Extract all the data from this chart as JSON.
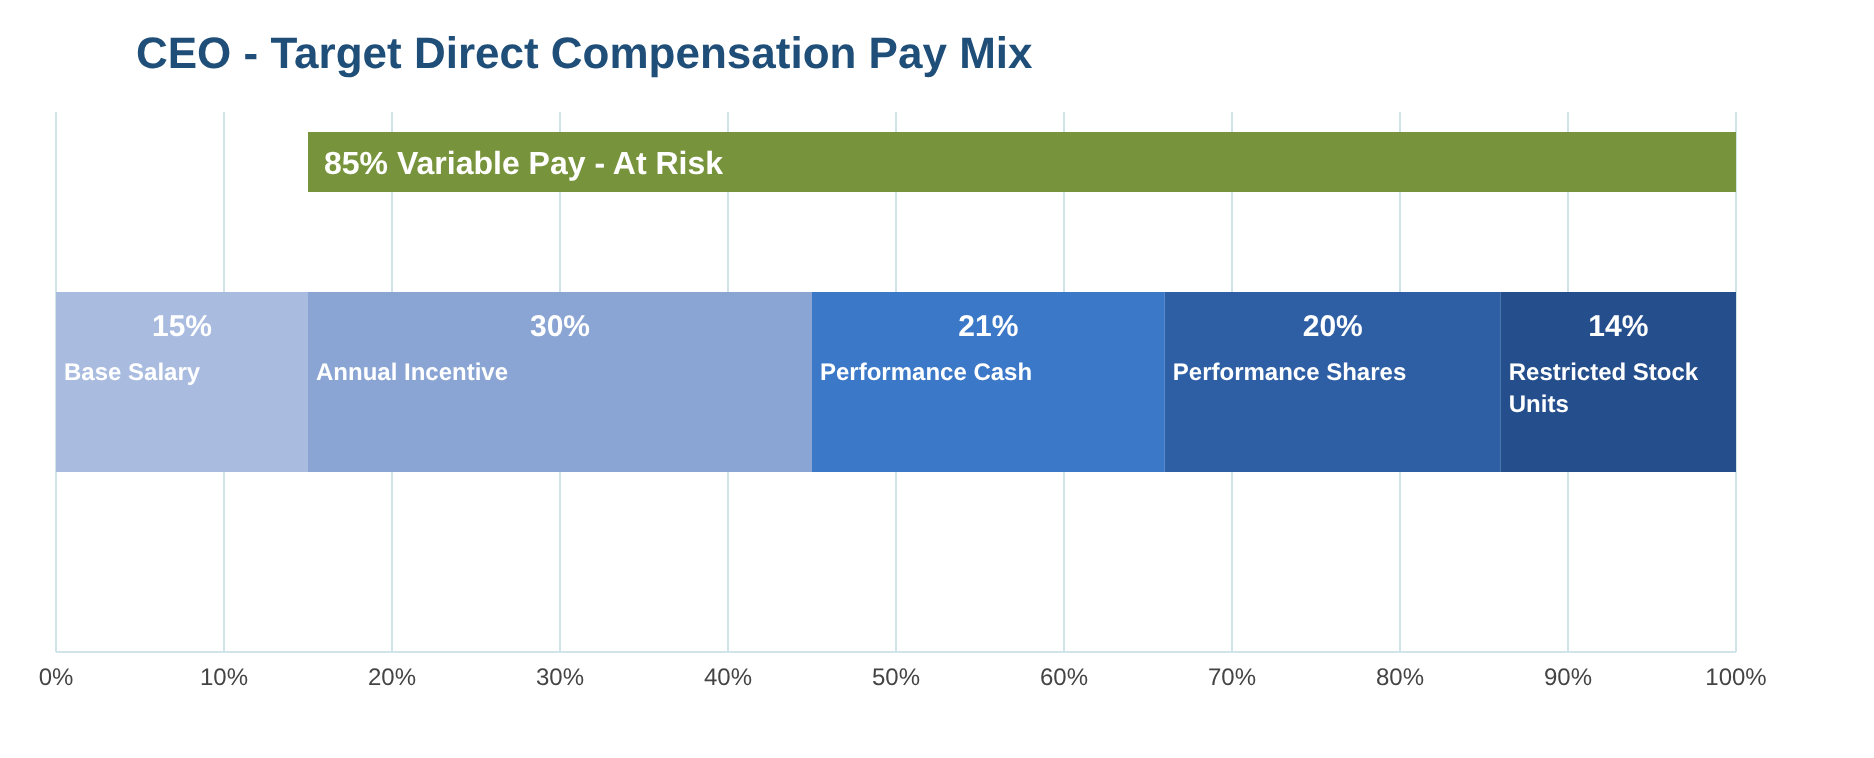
{
  "chart_data": {
    "type": "bar",
    "title": "CEO - Target Direct Compensation Pay Mix",
    "orientation": "horizontal",
    "stacked": true,
    "categories": [
      null
    ],
    "series": [
      {
        "name": "Base Salary",
        "color": "#a9bce0",
        "values": [
          15
        ],
        "value_labels": [
          "15%"
        ]
      },
      {
        "name": "Annual Incentive",
        "color": "#8aa4d3",
        "values": [
          30
        ],
        "value_labels": [
          "30%"
        ]
      },
      {
        "name": "Performance Cash",
        "color": "#3b78c8",
        "values": [
          21
        ],
        "value_labels": [
          "21%"
        ]
      },
      {
        "name": "Performance Shares",
        "color": "#2e5fa5",
        "values": [
          20
        ],
        "value_labels": [
          "20%"
        ]
      },
      {
        "name": "Restricted Stock Units",
        "color": "#244f8c",
        "values": [
          14
        ],
        "value_labels": [
          "14%"
        ]
      }
    ],
    "bands": [
      {
        "axis": "x",
        "from": 15,
        "to": 100,
        "label": "85% Variable Pay - At Risk",
        "color": "#77933c"
      }
    ],
    "xlim": [
      0,
      100
    ],
    "xticks": [
      {
        "value": 0,
        "label": "0%"
      },
      {
        "value": 10,
        "label": "10%"
      },
      {
        "value": 20,
        "label": "20%"
      },
      {
        "value": 30,
        "label": "30%"
      },
      {
        "value": 40,
        "label": "40%"
      },
      {
        "value": 50,
        "label": "50%"
      },
      {
        "value": 60,
        "label": "60%"
      },
      {
        "value": 70,
        "label": "70%"
      },
      {
        "value": 80,
        "label": "80%"
      },
      {
        "value": 90,
        "label": "90%"
      },
      {
        "value": 100,
        "label": "100%"
      }
    ],
    "grid": "x",
    "legend": false
  }
}
